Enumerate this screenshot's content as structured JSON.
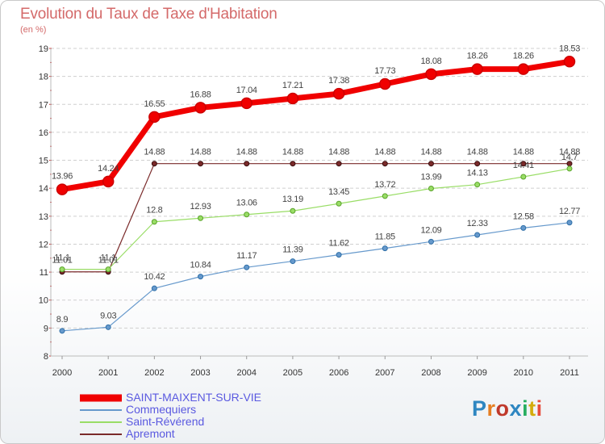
{
  "chart_data": {
    "type": "line",
    "title": "Evolution du Taux de Taxe d'Habitation",
    "subtitle": "(en %)",
    "xlabel": "",
    "ylabel": "",
    "ylim": [
      8,
      19
    ],
    "yticks": [
      "8",
      "9",
      "10",
      "11",
      "12",
      "13",
      "14",
      "15",
      "16",
      "17",
      "18",
      "19"
    ],
    "categories": [
      "2000",
      "2001",
      "2002",
      "2003",
      "2004",
      "2005",
      "2006",
      "2007",
      "2008",
      "2009",
      "2010",
      "2011"
    ],
    "grid": "horizontal dashed",
    "legend_position": "bottom-left",
    "series": [
      {
        "name": "SAINT-MAIXENT-SUR-VIE",
        "color": "#f00000",
        "values": [
          13.96,
          14.24,
          16.55,
          16.88,
          17.04,
          17.21,
          17.38,
          17.73,
          18.08,
          18.26,
          18.26,
          18.53
        ],
        "labels": [
          "13.96",
          "14.24",
          "16.55",
          "16.88",
          "17.04",
          "17.21",
          "17.38",
          "17.73",
          "18.08",
          "18.26",
          "18.26",
          "18.53"
        ]
      },
      {
        "name": "Commequiers",
        "color": "#6699cc",
        "values": [
          8.9,
          9.03,
          10.42,
          10.84,
          11.17,
          11.39,
          11.62,
          11.85,
          12.09,
          12.33,
          12.58,
          12.77
        ],
        "labels": [
          "8.9",
          "9.03",
          "10.42",
          "10.84",
          "11.17",
          "11.39",
          "11.62",
          "11.85",
          "12.09",
          "12.33",
          "12.58",
          "12.77"
        ]
      },
      {
        "name": "Saint-Révérend",
        "color": "#99dd66",
        "values": [
          11.1,
          11.1,
          12.8,
          12.93,
          13.06,
          13.19,
          13.45,
          13.72,
          13.99,
          14.13,
          14.41,
          14.7
        ],
        "labels": [
          "11.1",
          "11.1",
          "12.8",
          "12.93",
          "13.06",
          "13.19",
          "13.45",
          "13.72",
          "13.99",
          "14.13",
          "14.41",
          "14.7"
        ]
      },
      {
        "name": "Apremont",
        "color": "#7a2a2a",
        "values": [
          11.01,
          11.01,
          14.88,
          14.88,
          14.88,
          14.88,
          14.88,
          14.88,
          14.88,
          14.88,
          14.88,
          14.88
        ],
        "labels": [
          "11.01",
          "11.01",
          "14.88",
          "14.88",
          "14.88",
          "14.88",
          "14.88",
          "14.88",
          "14.88",
          "14.88",
          "14.88",
          "14.88"
        ]
      }
    ]
  },
  "logo": {
    "text": "Proxiti",
    "letter_colors": [
      "#2e86c1",
      "#e67e22",
      "#c0392b",
      "#2e86c1",
      "#27ae60",
      "#d4ac0d",
      "#e74c3c"
    ]
  }
}
